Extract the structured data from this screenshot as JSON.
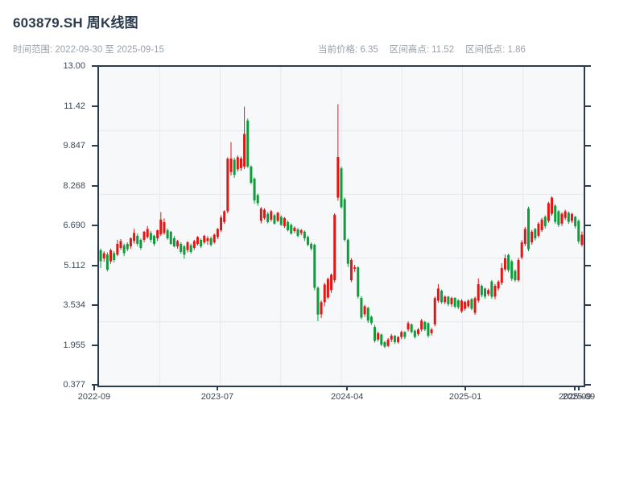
{
  "header": {
    "title": "603879.SH 周K线图",
    "subtitle": "时间范围: 2022-09-30 至 2025-09-15",
    "stats": [
      {
        "label": "当前价格:",
        "value": "6.35"
      },
      {
        "label": "区间高点:",
        "value": "11.52"
      },
      {
        "label": "区间低点:",
        "value": "1.86"
      }
    ]
  },
  "chart_data": {
    "type": "candlestick",
    "title": "603879.SH 周K线图",
    "period": "weekly",
    "date_range": {
      "start": "2022-09-30",
      "end": "2025-09-15"
    },
    "current_price": 6.35,
    "range_high": 11.52,
    "range_low": 1.86,
    "up_color": "#e31616",
    "down_color": "#0e9c3c",
    "grid_color": "#e6e9ed",
    "plot_bg": "#f7f8fa",
    "spine_color": "#2c3c50",
    "y_axis": {
      "min": 0.377,
      "max": 13.0,
      "tick_labels": [
        "13.00",
        "11.42",
        "9.847",
        "8.268",
        "6.690",
        "5.112",
        "3.534",
        "1.955",
        "0.377"
      ]
    },
    "x_axis": {
      "ticks": [
        {
          "label": "2022-09",
          "pos": -0.01
        },
        {
          "label": "2023-07",
          "pos": 0.244
        },
        {
          "label": "2024-04",
          "pos": 0.512
        },
        {
          "label": "2025-01",
          "pos": 0.756
        },
        {
          "label": "2025-09",
          "pos": 0.982
        },
        {
          "label": "2025-09",
          "pos": 0.99
        }
      ]
    },
    "candles": [
      [
        5.74,
        5.8,
        5.03,
        5.3
      ],
      [
        5.41,
        5.7,
        5.28,
        5.62
      ],
      [
        5.57,
        5.65,
        4.9,
        4.97
      ],
      [
        5.3,
        5.8,
        5.2,
        5.74
      ],
      [
        5.62,
        5.7,
        5.25,
        5.35
      ],
      [
        5.56,
        6.15,
        5.5,
        5.99
      ],
      [
        5.83,
        6.18,
        5.75,
        6.1
      ],
      [
        5.93,
        6.0,
        5.5,
        5.62
      ],
      [
        5.99,
        6.05,
        5.7,
        5.78
      ],
      [
        5.89,
        6.25,
        5.8,
        6.21
      ],
      [
        6.1,
        6.58,
        6.0,
        6.42
      ],
      [
        6.31,
        6.4,
        5.9,
        5.99
      ],
      [
        6.15,
        6.2,
        5.75,
        5.83
      ],
      [
        6.15,
        6.5,
        6.05,
        6.47
      ],
      [
        6.26,
        6.7,
        6.2,
        6.58
      ],
      [
        6.42,
        6.5,
        6.05,
        6.15
      ],
      [
        6.31,
        6.35,
        5.9,
        5.99
      ],
      [
        6.21,
        6.55,
        6.1,
        6.53
      ],
      [
        6.37,
        7.25,
        6.3,
        6.95
      ],
      [
        6.42,
        7.0,
        6.35,
        6.85
      ],
      [
        6.53,
        6.6,
        6.15,
        6.21
      ],
      [
        6.47,
        6.5,
        5.95,
        5.99
      ],
      [
        6.21,
        6.3,
        5.85,
        5.89
      ],
      [
        5.89,
        6.15,
        5.8,
        6.1
      ],
      [
        5.99,
        6.05,
        5.6,
        5.67
      ],
      [
        5.89,
        5.95,
        5.4,
        5.56
      ],
      [
        5.74,
        6.1,
        5.65,
        6.05
      ],
      [
        5.93,
        6.0,
        5.6,
        5.67
      ],
      [
        5.83,
        6.15,
        5.75,
        6.1
      ],
      [
        5.99,
        6.3,
        5.92,
        6.26
      ],
      [
        6.15,
        6.2,
        5.82,
        5.89
      ],
      [
        6.05,
        6.35,
        5.98,
        6.31
      ],
      [
        6.1,
        6.3,
        5.95,
        6.21
      ],
      [
        6.21,
        6.28,
        5.88,
        5.95
      ],
      [
        6.05,
        6.4,
        6.0,
        6.35
      ],
      [
        6.26,
        6.62,
        6.18,
        6.58
      ],
      [
        6.53,
        7.12,
        6.45,
        7.03
      ],
      [
        6.85,
        7.32,
        6.78,
        7.28
      ],
      [
        7.28,
        9.42,
        7.2,
        9.36
      ],
      [
        8.83,
        10.02,
        8.7,
        9.37
      ],
      [
        9.32,
        9.4,
        8.6,
        8.72
      ],
      [
        8.94,
        9.5,
        8.85,
        9.42
      ],
      [
        8.99,
        9.45,
        8.88,
        9.37
      ],
      [
        9.05,
        11.42,
        8.95,
        10.34
      ],
      [
        10.87,
        10.95,
        9.0,
        9.05
      ],
      [
        9.05,
        9.1,
        8.35,
        8.41
      ],
      [
        8.57,
        8.62,
        7.58,
        7.71
      ],
      [
        7.92,
        7.98,
        7.5,
        7.6
      ],
      [
        6.9,
        7.45,
        6.8,
        7.39
      ],
      [
        7.01,
        7.4,
        6.95,
        7.34
      ],
      [
        7.18,
        7.25,
        6.8,
        6.85
      ],
      [
        6.95,
        7.33,
        6.88,
        7.28
      ],
      [
        7.12,
        7.18,
        6.75,
        6.79
      ],
      [
        6.9,
        7.26,
        6.85,
        7.22
      ],
      [
        7.06,
        7.12,
        6.7,
        6.74
      ],
      [
        6.69,
        7.05,
        6.62,
        7.01
      ],
      [
        6.85,
        6.92,
        6.48,
        6.53
      ],
      [
        6.74,
        6.8,
        6.35,
        6.4
      ],
      [
        6.5,
        6.68,
        6.42,
        6.63
      ],
      [
        6.56,
        6.62,
        6.25,
        6.31
      ],
      [
        6.42,
        6.58,
        6.33,
        6.53
      ],
      [
        6.47,
        6.52,
        6.1,
        6.21
      ],
      [
        6.26,
        6.32,
        5.9,
        5.95
      ],
      [
        5.99,
        6.05,
        5.72,
        5.8
      ],
      [
        5.95,
        6.0,
        4.15,
        4.25
      ],
      [
        4.25,
        4.3,
        2.93,
        3.19
      ],
      [
        3.2,
        3.75,
        3.05,
        3.68
      ],
      [
        3.68,
        4.45,
        3.52,
        4.38
      ],
      [
        3.87,
        4.66,
        3.8,
        4.6
      ],
      [
        4.16,
        4.82,
        4.05,
        4.77
      ],
      [
        4.55,
        7.2,
        4.45,
        7.14
      ],
      [
        7.82,
        11.52,
        7.7,
        9.43
      ],
      [
        8.98,
        9.05,
        7.38,
        7.44
      ],
      [
        7.76,
        7.82,
        6.08,
        6.15
      ],
      [
        6.15,
        6.2,
        5.08,
        5.2
      ],
      [
        4.55,
        5.42,
        4.48,
        5.35
      ],
      [
        5.0,
        5.16,
        4.88,
        5.06
      ],
      [
        5.06,
        5.1,
        3.82,
        3.9
      ],
      [
        3.85,
        3.92,
        3.0,
        3.07
      ],
      [
        3.2,
        3.58,
        3.1,
        3.52
      ],
      [
        3.45,
        3.5,
        2.86,
        2.95
      ],
      [
        3.1,
        3.15,
        2.78,
        2.86
      ],
      [
        2.7,
        2.78,
        2.08,
        2.15
      ],
      [
        2.2,
        2.52,
        2.12,
        2.45
      ],
      [
        2.4,
        2.44,
        1.94,
        2.0
      ],
      [
        2.1,
        2.15,
        1.86,
        1.92
      ],
      [
        1.95,
        2.26,
        1.9,
        2.2
      ],
      [
        2.2,
        2.42,
        2.1,
        2.35
      ],
      [
        2.35,
        2.38,
        2.02,
        2.1
      ],
      [
        2.1,
        2.34,
        2.04,
        2.3
      ],
      [
        2.3,
        2.56,
        2.22,
        2.5
      ],
      [
        2.5,
        2.53,
        2.22,
        2.3
      ],
      [
        2.6,
        2.92,
        2.52,
        2.85
      ],
      [
        2.8,
        2.84,
        2.44,
        2.5
      ],
      [
        2.55,
        2.6,
        2.24,
        2.3
      ],
      [
        2.42,
        2.66,
        2.34,
        2.6
      ],
      [
        2.6,
        3.02,
        2.52,
        2.95
      ],
      [
        2.9,
        2.94,
        2.54,
        2.6
      ],
      [
        2.85,
        2.88,
        2.28,
        2.35
      ],
      [
        2.45,
        2.66,
        2.36,
        2.6
      ],
      [
        2.8,
        3.9,
        2.72,
        3.84
      ],
      [
        3.74,
        4.4,
        3.66,
        4.22
      ],
      [
        4.13,
        4.18,
        3.62,
        3.68
      ],
      [
        3.68,
        3.95,
        3.6,
        3.9
      ],
      [
        3.9,
        3.93,
        3.52,
        3.6
      ],
      [
        3.6,
        3.9,
        3.5,
        3.85
      ],
      [
        3.85,
        3.88,
        3.44,
        3.5
      ],
      [
        3.75,
        3.8,
        3.4,
        3.48
      ],
      [
        3.32,
        3.8,
        3.25,
        3.74
      ],
      [
        3.42,
        3.74,
        3.34,
        3.69
      ],
      [
        3.52,
        3.8,
        3.44,
        3.74
      ],
      [
        3.8,
        3.84,
        3.36,
        3.42
      ],
      [
        3.26,
        3.9,
        3.18,
        3.84
      ],
      [
        3.74,
        4.62,
        3.66,
        4.39
      ],
      [
        4.33,
        4.38,
        3.88,
        3.96
      ],
      [
        4.22,
        4.26,
        3.82,
        3.9
      ],
      [
        4.0,
        4.22,
        3.92,
        4.16
      ],
      [
        4.5,
        4.56,
        3.82,
        3.9
      ],
      [
        3.9,
        4.4,
        3.8,
        4.33
      ],
      [
        4.22,
        4.55,
        4.14,
        4.49
      ],
      [
        4.45,
        5.22,
        4.36,
        5.03
      ],
      [
        4.98,
        5.57,
        4.9,
        5.42
      ],
      [
        5.55,
        5.6,
        4.86,
        4.95
      ],
      [
        5.3,
        5.36,
        4.52,
        4.61
      ],
      [
        4.92,
        4.98,
        4.48,
        4.55
      ],
      [
        4.55,
        5.44,
        4.48,
        5.35
      ],
      [
        5.45,
        6.14,
        5.38,
        6.05
      ],
      [
        5.99,
        6.66,
        5.9,
        6.58
      ],
      [
        7.39,
        7.46,
        5.7,
        5.78
      ],
      [
        6.05,
        6.54,
        5.96,
        6.47
      ],
      [
        6.58,
        6.62,
        6.12,
        6.21
      ],
      [
        6.31,
        6.85,
        6.24,
        6.79
      ],
      [
        6.53,
        7.02,
        6.46,
        6.95
      ],
      [
        7.06,
        7.12,
        6.6,
        6.69
      ],
      [
        6.9,
        7.66,
        6.82,
        7.6
      ],
      [
        7.18,
        7.87,
        7.1,
        7.82
      ],
      [
        7.5,
        7.56,
        6.78,
        6.86
      ],
      [
        7.28,
        7.33,
        6.66,
        6.74
      ],
      [
        6.79,
        7.24,
        6.7,
        7.18
      ],
      [
        7.02,
        7.34,
        6.94,
        7.28
      ],
      [
        7.22,
        7.27,
        6.78,
        6.86
      ],
      [
        6.9,
        7.22,
        6.82,
        7.17
      ],
      [
        7.06,
        7.1,
        6.6,
        6.69
      ],
      [
        6.9,
        6.96,
        6.0,
        6.09
      ],
      [
        5.95,
        6.48,
        5.88,
        6.35
      ]
    ]
  }
}
